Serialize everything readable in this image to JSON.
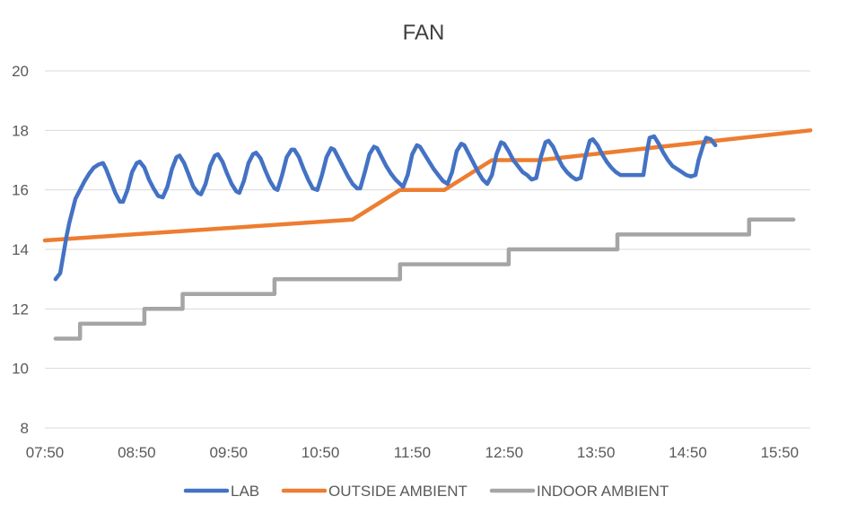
{
  "chart_data": {
    "type": "line",
    "title": "FAN",
    "xlabel": "",
    "ylabel": "",
    "x_tick_labels": [
      "07:50",
      "08:50",
      "09:50",
      "10:50",
      "11:50",
      "12:50",
      "13:50",
      "14:50",
      "15:50"
    ],
    "x_tick_minutes": [
      470,
      530,
      590,
      650,
      710,
      770,
      830,
      890,
      950
    ],
    "xlim_minutes": [
      470,
      970
    ],
    "y_ticks": [
      8,
      10,
      12,
      14,
      16,
      18,
      20
    ],
    "y_tick_labels": [
      "8",
      "10",
      "12",
      "14",
      "16",
      "18",
      "20"
    ],
    "ylim": [
      8,
      20
    ],
    "grid": "horizontal",
    "legend_position": "bottom",
    "series": [
      {
        "name": "LAB",
        "color": "#4472C4",
        "points": [
          [
            477,
            13.0
          ],
          [
            480,
            13.2
          ],
          [
            482,
            13.8
          ],
          [
            484,
            14.4
          ],
          [
            486,
            14.9
          ],
          [
            488,
            15.3
          ],
          [
            490,
            15.7
          ],
          [
            493,
            16.0
          ],
          [
            496,
            16.3
          ],
          [
            499,
            16.55
          ],
          [
            502,
            16.75
          ],
          [
            505,
            16.85
          ],
          [
            508,
            16.9
          ],
          [
            510,
            16.7
          ],
          [
            513,
            16.3
          ],
          [
            516,
            15.9
          ],
          [
            519,
            15.6
          ],
          [
            521,
            15.6
          ],
          [
            524,
            16.0
          ],
          [
            527,
            16.6
          ],
          [
            530,
            16.9
          ],
          [
            532,
            16.95
          ],
          [
            535,
            16.75
          ],
          [
            538,
            16.35
          ],
          [
            541,
            16.05
          ],
          [
            544,
            15.8
          ],
          [
            547,
            15.75
          ],
          [
            550,
            16.1
          ],
          [
            553,
            16.7
          ],
          [
            556,
            17.1
          ],
          [
            558,
            17.15
          ],
          [
            561,
            16.9
          ],
          [
            564,
            16.5
          ],
          [
            567,
            16.1
          ],
          [
            570,
            15.9
          ],
          [
            572,
            15.85
          ],
          [
            575,
            16.2
          ],
          [
            578,
            16.8
          ],
          [
            581,
            17.15
          ],
          [
            583,
            17.2
          ],
          [
            586,
            16.95
          ],
          [
            589,
            16.55
          ],
          [
            592,
            16.2
          ],
          [
            595,
            15.95
          ],
          [
            597,
            15.9
          ],
          [
            600,
            16.3
          ],
          [
            603,
            16.9
          ],
          [
            606,
            17.2
          ],
          [
            608,
            17.25
          ],
          [
            611,
            17.05
          ],
          [
            614,
            16.65
          ],
          [
            617,
            16.3
          ],
          [
            620,
            16.05
          ],
          [
            622,
            16.0
          ],
          [
            625,
            16.5
          ],
          [
            628,
            17.1
          ],
          [
            631,
            17.35
          ],
          [
            633,
            17.35
          ],
          [
            636,
            17.1
          ],
          [
            639,
            16.7
          ],
          [
            642,
            16.35
          ],
          [
            645,
            16.05
          ],
          [
            648,
            16.0
          ],
          [
            651,
            16.5
          ],
          [
            654,
            17.1
          ],
          [
            657,
            17.4
          ],
          [
            659,
            17.35
          ],
          [
            662,
            17.05
          ],
          [
            665,
            16.75
          ],
          [
            668,
            16.45
          ],
          [
            671,
            16.2
          ],
          [
            674,
            16.05
          ],
          [
            676,
            16.05
          ],
          [
            679,
            16.6
          ],
          [
            682,
            17.2
          ],
          [
            685,
            17.45
          ],
          [
            687,
            17.4
          ],
          [
            690,
            17.1
          ],
          [
            693,
            16.8
          ],
          [
            696,
            16.55
          ],
          [
            699,
            16.35
          ],
          [
            702,
            16.2
          ],
          [
            704,
            16.1
          ],
          [
            707,
            16.5
          ],
          [
            710,
            17.2
          ],
          [
            713,
            17.5
          ],
          [
            715,
            17.45
          ],
          [
            718,
            17.2
          ],
          [
            721,
            16.95
          ],
          [
            724,
            16.7
          ],
          [
            727,
            16.5
          ],
          [
            730,
            16.3
          ],
          [
            733,
            16.2
          ],
          [
            736,
            16.6
          ],
          [
            739,
            17.3
          ],
          [
            742,
            17.55
          ],
          [
            744,
            17.5
          ],
          [
            747,
            17.2
          ],
          [
            750,
            16.9
          ],
          [
            753,
            16.6
          ],
          [
            756,
            16.35
          ],
          [
            759,
            16.2
          ],
          [
            762,
            16.5
          ],
          [
            765,
            17.2
          ],
          [
            768,
            17.6
          ],
          [
            770,
            17.55
          ],
          [
            773,
            17.3
          ],
          [
            776,
            17.0
          ],
          [
            779,
            16.8
          ],
          [
            782,
            16.6
          ],
          [
            785,
            16.5
          ],
          [
            788,
            16.35
          ],
          [
            791,
            16.4
          ],
          [
            794,
            17.1
          ],
          [
            797,
            17.6
          ],
          [
            799,
            17.65
          ],
          [
            802,
            17.45
          ],
          [
            805,
            17.1
          ],
          [
            808,
            16.8
          ],
          [
            811,
            16.6
          ],
          [
            814,
            16.45
          ],
          [
            817,
            16.35
          ],
          [
            820,
            16.4
          ],
          [
            823,
            17.1
          ],
          [
            826,
            17.65
          ],
          [
            828,
            17.7
          ],
          [
            831,
            17.5
          ],
          [
            834,
            17.2
          ],
          [
            837,
            16.95
          ],
          [
            840,
            16.75
          ],
          [
            843,
            16.6
          ],
          [
            846,
            16.5
          ],
          [
            849,
            16.5
          ],
          [
            852,
            16.5
          ],
          [
            855,
            16.5
          ],
          [
            858,
            16.5
          ],
          [
            861,
            16.5
          ],
          [
            863,
            17.2
          ],
          [
            865,
            17.75
          ],
          [
            868,
            17.8
          ],
          [
            871,
            17.55
          ],
          [
            874,
            17.25
          ],
          [
            877,
            17.0
          ],
          [
            880,
            16.8
          ],
          [
            883,
            16.7
          ],
          [
            886,
            16.6
          ],
          [
            889,
            16.5
          ],
          [
            892,
            16.45
          ],
          [
            895,
            16.5
          ],
          [
            897,
            17.0
          ],
          [
            900,
            17.5
          ],
          [
            902,
            17.75
          ],
          [
            905,
            17.7
          ],
          [
            908,
            17.5
          ]
        ]
      },
      {
        "name": "OUTSIDE AMBIENT",
        "color": "#ED7D31",
        "points": [
          [
            470,
            14.3
          ],
          [
            671,
            15.0
          ],
          [
            702,
            16.0
          ],
          [
            731,
            16.0
          ],
          [
            762,
            17.0
          ],
          [
            793,
            17.0
          ],
          [
            970,
            18.0
          ]
        ]
      },
      {
        "name": "INDOOR AMBIENT",
        "color": "#A5A5A5",
        "points": [
          [
            477,
            11.0
          ],
          [
            493,
            11.0
          ],
          [
            493,
            11.5
          ],
          [
            535,
            11.5
          ],
          [
            535,
            12.0
          ],
          [
            560,
            12.0
          ],
          [
            560,
            12.5
          ],
          [
            620,
            12.5
          ],
          [
            620,
            13.0
          ],
          [
            702,
            13.0
          ],
          [
            702,
            13.5
          ],
          [
            773,
            13.5
          ],
          [
            773,
            14.0
          ],
          [
            844,
            14.0
          ],
          [
            844,
            14.5
          ],
          [
            930,
            14.5
          ],
          [
            930,
            15.0
          ],
          [
            959,
            15.0
          ]
        ]
      }
    ]
  }
}
